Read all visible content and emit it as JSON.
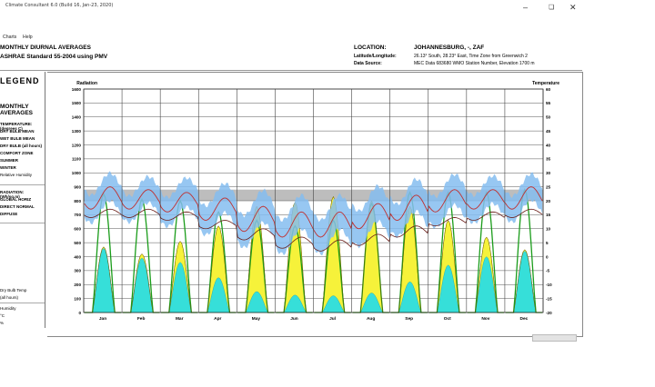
{
  "window": {
    "title": "Climate Consultant 6.0 (Build 16, Jan-23, 2020)",
    "minimize_icon": "minimize-icon",
    "maximize_icon": "maximize-icon",
    "close_icon": "close-icon"
  },
  "menu": {
    "items": [
      "Charts",
      "Help"
    ]
  },
  "header": {
    "title_line1": "MONTHLY DIURNAL AVERAGES",
    "title_line2": "ASHRAE Standard 55-2004 using PMV",
    "location_label": "LOCATION:",
    "location_value": "JOHANNESBURG, -, ZAF",
    "latlong_label": "Latitude/Longitude:",
    "latlong_value": "26.13° South, 28.23° East, Time Zone from Greenwich 2",
    "source_label": "Data Source:",
    "source_value": "MEC Data    683680 WMO Station Number, Elevation 1700 m"
  },
  "legend": {
    "heading": "LEGEND",
    "subheading": "MONTHLY AVERAGES",
    "temp_title": "TEMPERATURE: (degrees C)",
    "items": [
      "DRY BULB MEAN",
      "WET BULB MEAN",
      "DRY BULB (all hours)",
      "COMFORT ZONE",
      "SUMMER",
      "WINTER",
      "Relative Humidity"
    ],
    "rad_title": "RADIATION: (Wh/sq.m)",
    "rad_items": [
      "GLOBAL HORIZ",
      "DIRECT NORMAL",
      "DIFFUSE"
    ],
    "footer_items": [
      "Dry Bulb Temp",
      "(all hours)",
      "Humidity",
      "°C",
      "%"
    ]
  },
  "chart_data": {
    "type": "line",
    "left_axis_label": "Radiation",
    "right_axis_label": "Temperature",
    "left_ticks": [
      1600,
      1500,
      1400,
      1300,
      1200,
      1100,
      1000,
      900,
      800,
      700,
      600,
      500,
      400,
      300,
      200,
      100,
      0
    ],
    "right_ticks": [
      60,
      55,
      50,
      45,
      40,
      35,
      30,
      25,
      20,
      15,
      10,
      5,
      0,
      -5,
      -10,
      -15,
      -20
    ],
    "ylim_radiation": [
      0,
      1600
    ],
    "ylim_temperature": [
      -20,
      60
    ],
    "categories": [
      "Jan",
      "Feb",
      "Mar",
      "Apr",
      "May",
      "Jun",
      "Jul",
      "Aug",
      "Sep",
      "Oct",
      "Nov",
      "Dec"
    ],
    "comfort_zone_temp_range": [
      20,
      24
    ],
    "series": [
      {
        "name": "DRY BULB MEAN",
        "color": "#c0302f",
        "daily_min": [
          17,
          17,
          16,
          13,
          9,
          7,
          7,
          10,
          13,
          16,
          17,
          17
        ],
        "daily_max": [
          25,
          24,
          23,
          21,
          18,
          16,
          16,
          19,
          22,
          24,
          24,
          25
        ]
      },
      {
        "name": "WET BULB MEAN",
        "color": "#6b1f1a",
        "daily_min": [
          14,
          14,
          13,
          10,
          6,
          3,
          2,
          4,
          7,
          11,
          13,
          14
        ],
        "daily_max": [
          17,
          17,
          16,
          13,
          10,
          7,
          6,
          8,
          11,
          14,
          16,
          17
        ]
      },
      {
        "name": "DRY BULB (all hours)",
        "color": "#85bdf0",
        "daily_min": [
          12,
          12,
          11,
          8,
          3,
          0,
          0,
          3,
          7,
          10,
          11,
          12
        ],
        "daily_max": [
          30,
          29,
          30,
          27,
          24,
          22,
          22,
          26,
          28,
          30,
          29,
          29
        ]
      },
      {
        "name": "GLOBAL HORIZ",
        "color": "#1a9c1a",
        "peak": [
          850,
          810,
          800,
          720,
          660,
          620,
          660,
          780,
          860,
          860,
          860,
          880
        ]
      },
      {
        "name": "DIRECT NORMAL",
        "color": "#f6f23a",
        "peak": [
          470,
          420,
          510,
          620,
          760,
          790,
          830,
          800,
          760,
          660,
          540,
          450
        ]
      },
      {
        "name": "DIFFUSE",
        "color": "#36dfd9",
        "peak": [
          460,
          390,
          360,
          250,
          150,
          125,
          120,
          140,
          220,
          340,
          400,
          440
        ]
      }
    ]
  }
}
